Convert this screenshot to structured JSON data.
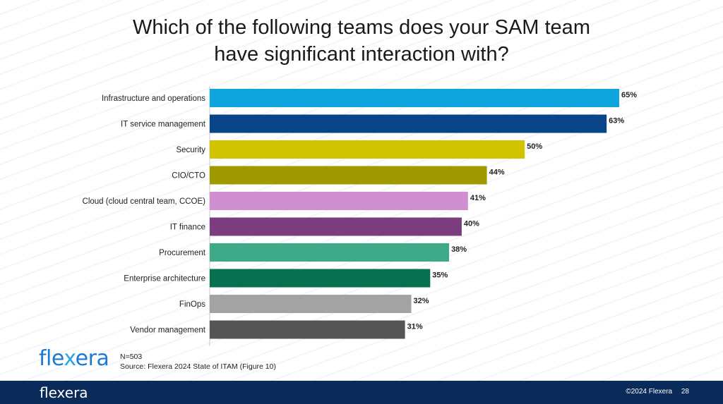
{
  "title": {
    "line1": "Which of the following teams does your SAM team",
    "line2": "have significant interaction with?"
  },
  "chart_data": {
    "type": "bar",
    "orientation": "horizontal",
    "categories": [
      "Infrastructure and operations",
      "IT service management",
      "Security",
      "CIO/CTO",
      "Cloud (cloud central team, CCOE)",
      "IT finance",
      "Procurement",
      "Enterprise architecture",
      "FinOps",
      "Vendor management"
    ],
    "values": [
      65,
      63,
      50,
      44,
      41,
      40,
      38,
      35,
      32,
      31
    ],
    "value_labels": [
      "65%",
      "63%",
      "50%",
      "44%",
      "41%",
      "40%",
      "38%",
      "35%",
      "32%",
      "31%"
    ],
    "colors": [
      "#0ea5de",
      "#0a4488",
      "#d0c400",
      "#9e9a00",
      "#d08fcf",
      "#7b3d7f",
      "#3faa8a",
      "#077050",
      "#a3a3a3",
      "#555555"
    ],
    "xlim": [
      0,
      65
    ],
    "grid": false,
    "legend": false
  },
  "notes": {
    "sample": "N=503",
    "source": "Source: Flexera 2024 State of ITAM (Figure 10)"
  },
  "logo": {
    "pre": "fle",
    "x": "x",
    "post": "era"
  },
  "footer": {
    "logo": "flexera",
    "copyright": "©2024 Flexera",
    "page": "28"
  }
}
